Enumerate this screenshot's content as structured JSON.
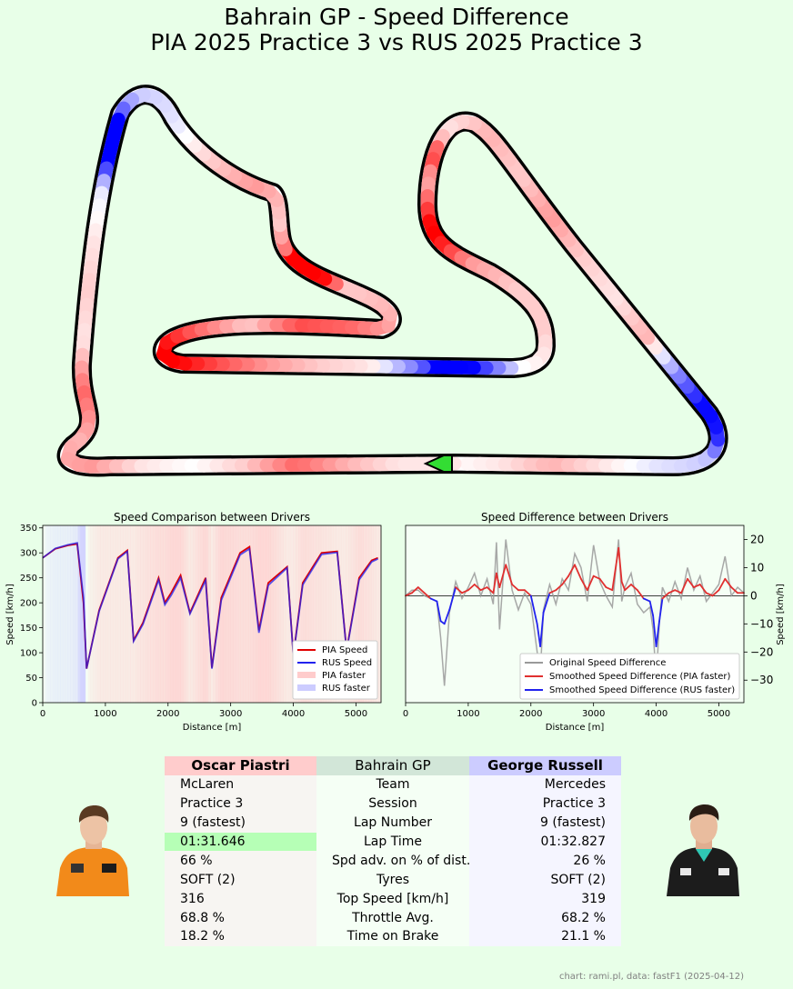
{
  "title_line1": "Bahrain GP - Speed Difference",
  "title_line2": "PIA 2025 Practice 3 vs RUS 2025 Practice 3",
  "colors": {
    "pia": "#e00000",
    "rus": "#2222ee",
    "pia_faster_fill": "#ffcccc",
    "rus_faster_fill": "#ccccff",
    "fastest_lap_highlight": "#b6ffb6",
    "background": "#e8ffe8"
  },
  "chart_data": [
    {
      "type": "line",
      "title": "Speed Comparison between Drivers",
      "xlabel": "Distance [m]",
      "ylabel": "Speed [km/h]",
      "xlim": [
        0,
        5400
      ],
      "ylim": [
        0,
        355
      ],
      "xticks": [
        0,
        1000,
        2000,
        3000,
        4000,
        5000
      ],
      "yticks": [
        0,
        50,
        100,
        150,
        200,
        250,
        300,
        350
      ],
      "legend": [
        "PIA Speed",
        "RUS Speed",
        "PIA faster",
        "RUS faster"
      ],
      "legend_position": "lower-right",
      "x": [
        0,
        200,
        400,
        550,
        650,
        700,
        900,
        1200,
        1350,
        1450,
        1600,
        1850,
        1950,
        2050,
        2200,
        2350,
        2600,
        2700,
        2850,
        3150,
        3300,
        3450,
        3600,
        3900,
        4000,
        4150,
        4450,
        4700,
        4850,
        5050,
        5250,
        5350
      ],
      "series": [
        {
          "name": "PIA Speed",
          "values": [
            290,
            308,
            315,
            318,
            200,
            68,
            185,
            290,
            305,
            125,
            160,
            250,
            200,
            220,
            255,
            180,
            250,
            70,
            210,
            300,
            312,
            145,
            240,
            272,
            95,
            240,
            300,
            303,
            105,
            250,
            285,
            290
          ]
        },
        {
          "name": "RUS Speed",
          "values": [
            290,
            309,
            316,
            320,
            210,
            68,
            183,
            288,
            303,
            123,
            157,
            246,
            196,
            215,
            250,
            178,
            245,
            68,
            205,
            296,
            308,
            140,
            235,
            270,
            93,
            236,
            297,
            301,
            103,
            246,
            282,
            288
          ]
        }
      ]
    },
    {
      "type": "line",
      "title": "Speed Difference between Drivers",
      "xlabel": "Distance [m]",
      "ylabel": "Speed [km/h]",
      "xlim": [
        0,
        5400
      ],
      "ylim": [
        -38,
        25
      ],
      "xticks": [
        0,
        1000,
        2000,
        3000,
        4000,
        5000
      ],
      "yticks": [
        -30,
        -20,
        -10,
        0,
        10,
        20
      ],
      "legend": [
        "Original Speed Difference",
        "Smoothed Speed Difference (PIA faster)",
        "Smoothed Speed Difference (RUS faster)"
      ],
      "legend_position": "lower-right",
      "x": [
        0,
        100,
        200,
        300,
        400,
        500,
        560,
        620,
        700,
        800,
        900,
        1000,
        1100,
        1200,
        1300,
        1400,
        1450,
        1500,
        1600,
        1700,
        1800,
        1900,
        2000,
        2100,
        2150,
        2200,
        2300,
        2400,
        2500,
        2600,
        2700,
        2800,
        2900,
        3000,
        3100,
        3200,
        3300,
        3400,
        3450,
        3500,
        3600,
        3700,
        3800,
        3900,
        3950,
        4000,
        4050,
        4100,
        4200,
        4300,
        4400,
        4500,
        4600,
        4700,
        4800,
        4900,
        5000,
        5100,
        5200,
        5300,
        5400
      ],
      "smoothed": [
        0,
        1,
        3,
        1,
        -1,
        -2,
        -9,
        -10,
        -5,
        3,
        1,
        2,
        4,
        2,
        3,
        1,
        8,
        3,
        11,
        4,
        2,
        2,
        0,
        -10,
        -18,
        -6,
        1,
        2,
        4,
        7,
        11,
        6,
        2,
        7,
        6,
        3,
        2,
        17,
        5,
        2,
        4,
        2,
        -1,
        -2,
        -7,
        -18,
        -9,
        -1,
        1,
        2,
        1,
        6,
        3,
        4,
        1,
        0,
        2,
        6,
        3,
        1,
        1
      ],
      "original": [
        0,
        2,
        2,
        0,
        -1,
        -2,
        -15,
        -32,
        -6,
        5,
        -1,
        3,
        8,
        0,
        6,
        -3,
        19,
        -12,
        20,
        2,
        -5,
        1,
        -3,
        -20,
        -28,
        -5,
        4,
        -3,
        6,
        2,
        15,
        10,
        -2,
        18,
        5,
        0,
        -4,
        20,
        -2,
        3,
        8,
        -3,
        -6,
        -4,
        -12,
        -30,
        -10,
        3,
        -2,
        5,
        -1,
        10,
        2,
        7,
        -2,
        1,
        4,
        14,
        0,
        3,
        1
      ]
    }
  ],
  "table": {
    "header": {
      "left": "Oscar Piastri",
      "mid": "Bahrain GP",
      "right": "George Russell"
    },
    "rows": [
      {
        "left": "McLaren",
        "mid": "Team",
        "right": "Mercedes"
      },
      {
        "left": "Practice 3",
        "mid": "Session",
        "right": "Practice 3"
      },
      {
        "left": "9 (fastest)",
        "mid": "Lap Number",
        "right": "9 (fastest)"
      },
      {
        "left": "01:31.646",
        "mid": "Lap Time",
        "right": "01:32.827"
      },
      {
        "left": "66 %",
        "mid": "Spd adv. on % of dist.",
        "right": "26 %"
      },
      {
        "left": "SOFT (2)",
        "mid": "Tyres",
        "right": "SOFT (2)"
      },
      {
        "left": "316",
        "mid": "Top Speed [km/h]",
        "right": "319"
      },
      {
        "left": "68.8 %",
        "mid": "Throttle Avg.",
        "right": "68.2 %"
      },
      {
        "left": "18.2 %",
        "mid": "Time on Brake",
        "right": "21.1 %"
      }
    ]
  },
  "credit": "chart: rami.pl, data: fastF1 (2025-04-12)"
}
